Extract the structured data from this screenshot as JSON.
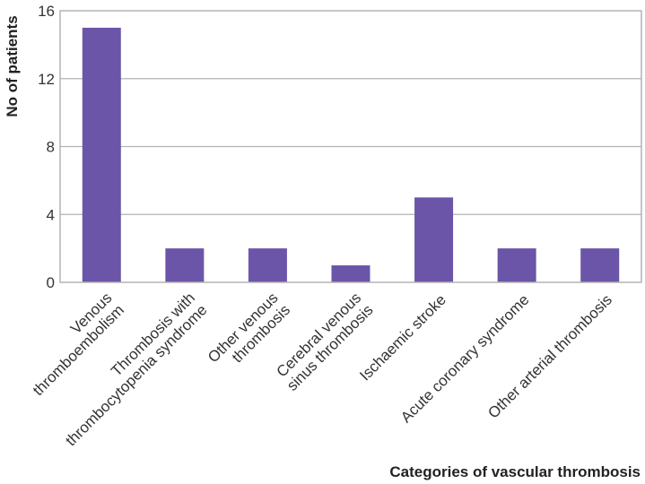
{
  "chart_data": {
    "type": "bar",
    "categories": [
      [
        "Venous",
        "thromboembolism"
      ],
      [
        "Thrombosis with",
        "thrombocytopenia syndrome"
      ],
      [
        "Other venous",
        "thrombosis"
      ],
      [
        "Cerebral venous",
        "sinus thrombosis"
      ],
      [
        "Ischaemic stroke"
      ],
      [
        "Acute coronary syndrome"
      ],
      [
        "Other arterial thrombosis"
      ]
    ],
    "values": [
      15,
      2,
      2,
      1,
      5,
      2,
      2
    ],
    "ylim": [
      0,
      16
    ],
    "yticks": [
      "0",
      "4",
      "8",
      "12",
      "16"
    ],
    "ylabel": "No of patients",
    "xlabel": "Categories of vascular thrombosis",
    "grid": true,
    "bar_color": "#6b55a8",
    "grid_color": "#b3b3b3",
    "frame_color": "#b3b3b3"
  }
}
